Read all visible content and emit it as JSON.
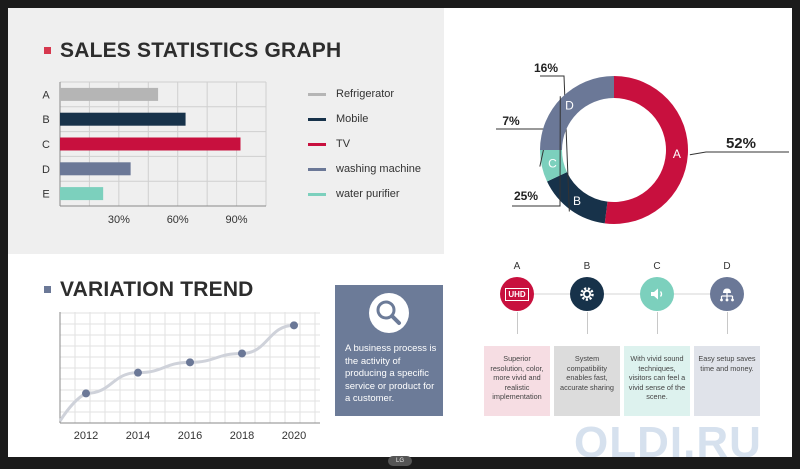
{
  "sales": {
    "title": "SALES STATISTICS GRAPH",
    "bullet_color": "#d6384e",
    "legend": [
      {
        "label": "Refrigerator",
        "color": "#b5b5b5"
      },
      {
        "label": "Mobile",
        "color": "#17324a"
      },
      {
        "label": "TV",
        "color": "#c8103e"
      },
      {
        "label": "washing machine",
        "color": "#6b7897"
      },
      {
        "label": "water purifier",
        "color": "#7cd0bd"
      }
    ]
  },
  "trend": {
    "title": "VARIATION TREND",
    "bullet_color": "#6b7897"
  },
  "info_box": {
    "icon": "magnifier-icon",
    "text": "A business process is the activity of producing a specific service or product for a customer."
  },
  "features": [
    {
      "letter": "A",
      "icon": "uhd-icon",
      "icon_text": "UHD",
      "color": "#c8103e",
      "card_color": "#f6dde3",
      "text": "Superior resolution, color, more vivid and realistic implementation"
    },
    {
      "letter": "B",
      "icon": "gear-icon",
      "color": "#17324a",
      "card_color": "#dcdcdc",
      "text": "System compatibility enables fast, accurate sharing"
    },
    {
      "letter": "C",
      "icon": "speaker-icon",
      "color": "#7cd0bd",
      "card_color": "#ddf2ee",
      "text": "With vivid sound techniques, visitors can feel a vivid sense of the scene."
    },
    {
      "letter": "D",
      "icon": "network-icon",
      "color": "#6b7897",
      "card_color": "#e0e3ea",
      "text": "Easy setup saves time and money."
    }
  ],
  "watermark": "OLDI.RU",
  "brand": "LG",
  "chart_data": [
    {
      "type": "bar",
      "orientation": "horizontal",
      "title": "SALES STATISTICS GRAPH",
      "categories": [
        "A",
        "B",
        "C",
        "D",
        "E"
      ],
      "values": [
        50,
        64,
        92,
        36,
        22
      ],
      "colors": [
        "#b5b5b5",
        "#17324a",
        "#c8103e",
        "#6b7897",
        "#7cd0bd"
      ],
      "xlim": [
        0,
        105
      ],
      "x_ticks": [
        30,
        60,
        90
      ],
      "x_tick_labels": [
        "30%",
        "60%",
        "90%"
      ],
      "grid": true,
      "legend_position": "right"
    },
    {
      "type": "line",
      "title": "VARIATION TREND",
      "x": [
        2012,
        2014,
        2016,
        2018,
        2020
      ],
      "values": [
        20,
        34,
        41,
        47,
        66
      ],
      "color": "#6b7897",
      "xlim": [
        2011,
        2021
      ],
      "ylim": [
        0,
        75
      ],
      "grid": true
    },
    {
      "type": "pie",
      "style": "donut",
      "labels": [
        "A",
        "B",
        "C",
        "D"
      ],
      "values": [
        52,
        16,
        7,
        25
      ],
      "value_labels": [
        "52%",
        "16%",
        "7%",
        "25%"
      ],
      "colors": [
        "#c8103e",
        "#17324a",
        "#7cd0bd",
        "#6b7897"
      ]
    }
  ]
}
